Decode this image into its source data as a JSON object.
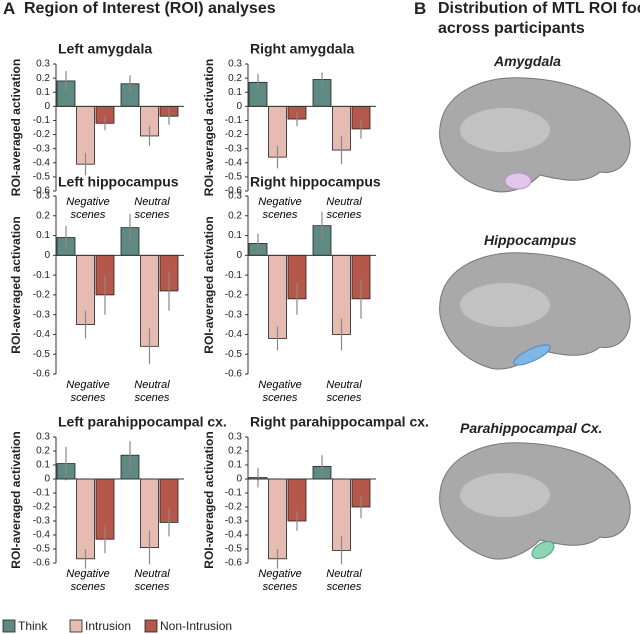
{
  "panel_a": {
    "letter": "A",
    "title": "Region of Interest (ROI) analyses"
  },
  "panel_b": {
    "letter": "B",
    "title": "Distribution of MTL ROI foci",
    "subtitle": "across participants",
    "regions": [
      "Amygdala",
      "Hippocampus",
      "Parahippocampal Cx."
    ]
  },
  "chart_data": [
    {
      "type": "bar",
      "title": "Left amygdala",
      "y_label": "ROI-averaged activation",
      "categories": [
        "Negative scenes",
        "Neutral scenes"
      ],
      "series": [
        {
          "name": "Think",
          "color": "#5f8a82",
          "values": [
            0.18,
            0.16
          ],
          "errors": [
            0.07,
            0.06
          ]
        },
        {
          "name": "Intrusion",
          "color": "#e6bbb0",
          "values": [
            -0.41,
            -0.21
          ],
          "errors": [
            0.08,
            0.07
          ]
        },
        {
          "name": "Non-Intrusion",
          "color": "#b5574a",
          "values": [
            -0.12,
            -0.07
          ],
          "errors": [
            0.05,
            0.06
          ]
        }
      ],
      "ylim": [
        -0.6,
        0.3
      ],
      "yticks": [
        0.3,
        0.2,
        0.1,
        0,
        -0.1,
        -0.2,
        -0.3,
        -0.4,
        -0.5,
        -0.6
      ],
      "legend": "bottom-left"
    },
    {
      "type": "bar",
      "title": "Right amygdala",
      "y_label": "ROI-averaged activation",
      "categories": [
        "Negative scenes",
        "Neutral scenes"
      ],
      "series": [
        {
          "name": "Think",
          "color": "#5f8a82",
          "values": [
            0.17,
            0.19
          ],
          "errors": [
            0.06,
            0.05
          ]
        },
        {
          "name": "Intrusion",
          "color": "#e6bbb0",
          "values": [
            -0.36,
            -0.31
          ],
          "errors": [
            0.08,
            0.1
          ]
        },
        {
          "name": "Non-Intrusion",
          "color": "#b5574a",
          "values": [
            -0.09,
            -0.16
          ],
          "errors": [
            0.05,
            0.07
          ]
        }
      ],
      "ylim": [
        -0.6,
        0.3
      ],
      "yticks": [
        0.3,
        0.2,
        0.1,
        0,
        -0.1,
        -0.2,
        -0.3,
        -0.4,
        -0.5,
        -0.6
      ]
    },
    {
      "type": "bar",
      "title": "Left hippocampus",
      "y_label": "ROI-averaged activation",
      "categories": [
        "Negative scenes",
        "Neutral scenes"
      ],
      "series": [
        {
          "name": "Think",
          "color": "#5f8a82",
          "values": [
            0.09,
            0.14
          ],
          "errors": [
            0.06,
            0.07
          ]
        },
        {
          "name": "Intrusion",
          "color": "#e6bbb0",
          "values": [
            -0.35,
            -0.46
          ],
          "errors": [
            0.07,
            0.09
          ]
        },
        {
          "name": "Non-Intrusion",
          "color": "#b5574a",
          "values": [
            -0.2,
            -0.18
          ],
          "errors": [
            0.1,
            0.1
          ]
        }
      ],
      "ylim": [
        -0.6,
        0.3
      ],
      "yticks": [
        0.3,
        0.2,
        0.1,
        0,
        -0.1,
        -0.2,
        -0.3,
        -0.4,
        -0.5,
        -0.6
      ]
    },
    {
      "type": "bar",
      "title": "Right hippocampus",
      "y_label": "ROI-averaged activation",
      "categories": [
        "Negative scenes",
        "Neutral scenes"
      ],
      "series": [
        {
          "name": "Think",
          "color": "#5f8a82",
          "values": [
            0.06,
            0.15
          ],
          "errors": [
            0.05,
            0.07
          ]
        },
        {
          "name": "Intrusion",
          "color": "#e6bbb0",
          "values": [
            -0.42,
            -0.4
          ],
          "errors": [
            0.06,
            0.08
          ]
        },
        {
          "name": "Non-Intrusion",
          "color": "#b5574a",
          "values": [
            -0.22,
            -0.22
          ],
          "errors": [
            0.08,
            0.1
          ]
        }
      ],
      "ylim": [
        -0.6,
        0.3
      ],
      "yticks": [
        0.3,
        0.2,
        0.1,
        0,
        -0.1,
        -0.2,
        -0.3,
        -0.4,
        -0.5,
        -0.6
      ]
    },
    {
      "type": "bar",
      "title": "Left parahippocampal cx.",
      "y_label": "ROI-averaged activation",
      "categories": [
        "Negative scenes",
        "Neutral scenes"
      ],
      "series": [
        {
          "name": "Think",
          "color": "#5f8a82",
          "values": [
            0.11,
            0.17
          ],
          "errors": [
            0.12,
            0.1
          ]
        },
        {
          "name": "Intrusion",
          "color": "#e6bbb0",
          "values": [
            -0.57,
            -0.49
          ],
          "errors": [
            0.07,
            0.12
          ]
        },
        {
          "name": "Non-Intrusion",
          "color": "#b5574a",
          "values": [
            -0.43,
            -0.31
          ],
          "errors": [
            0.1,
            0.1
          ]
        }
      ],
      "ylim": [
        -0.6,
        0.3
      ],
      "yticks": [
        0.3,
        0.2,
        0.1,
        0,
        -0.1,
        -0.2,
        -0.3,
        -0.4,
        -0.5,
        -0.6
      ]
    },
    {
      "type": "bar",
      "title": "Right parahippocampal cx.",
      "y_label": "ROI-averaged activation",
      "categories": [
        "Negative scenes",
        "Neutral scenes"
      ],
      "series": [
        {
          "name": "Think",
          "color": "#5f8a82",
          "values": [
            0.01,
            0.09
          ],
          "errors": [
            0.07,
            0.08
          ]
        },
        {
          "name": "Intrusion",
          "color": "#e6bbb0",
          "values": [
            -0.57,
            -0.51
          ],
          "errors": [
            0.07,
            0.1
          ]
        },
        {
          "name": "Non-Intrusion",
          "color": "#b5574a",
          "values": [
            -0.3,
            -0.2
          ],
          "errors": [
            0.07,
            0.08
          ]
        }
      ],
      "ylim": [
        -0.6,
        0.3
      ],
      "yticks": [
        0.3,
        0.2,
        0.1,
        0,
        -0.1,
        -0.2,
        -0.3,
        -0.4,
        -0.5,
        -0.6
      ]
    }
  ]
}
